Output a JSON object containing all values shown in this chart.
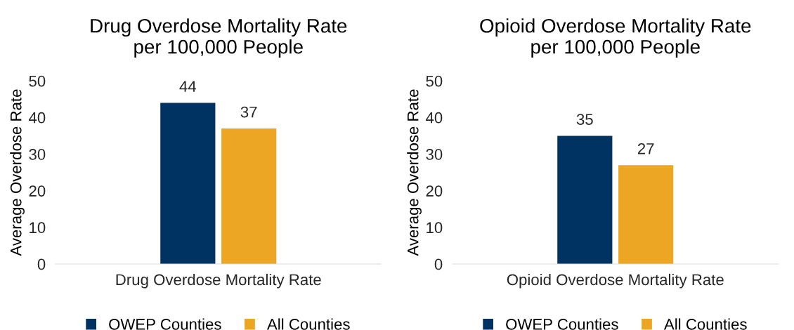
{
  "chart_data": [
    {
      "type": "bar",
      "title": "Drug Overdose Mortality Rate\nper 100,000 People",
      "ylabel": "Average Overdose Rate",
      "categories": [
        "Drug Overdose Mortality Rate"
      ],
      "series": [
        {
          "name": "OWEP Counties",
          "color": "#003361",
          "values": [
            44
          ]
        },
        {
          "name": "All Counties",
          "color": "#eca623",
          "values": [
            37
          ]
        }
      ],
      "ylim": [
        0,
        50
      ],
      "yticks": [
        0,
        10,
        20,
        30,
        40,
        50
      ],
      "grid": false,
      "legend": "bottom",
      "data_labels": true
    },
    {
      "type": "bar",
      "title": "Opioid Overdose Mortality Rate\nper 100,000 People",
      "ylabel": "Average Overdose Rate",
      "categories": [
        "Opioid Overdose Mortality Rate"
      ],
      "series": [
        {
          "name": "OWEP Counties",
          "color": "#003361",
          "values": [
            35
          ]
        },
        {
          "name": "All Counties",
          "color": "#eca623",
          "values": [
            27
          ]
        }
      ],
      "ylim": [
        0,
        50
      ],
      "yticks": [
        0,
        10,
        20,
        30,
        40,
        50
      ],
      "grid": false,
      "legend": "bottom",
      "data_labels": true
    }
  ]
}
